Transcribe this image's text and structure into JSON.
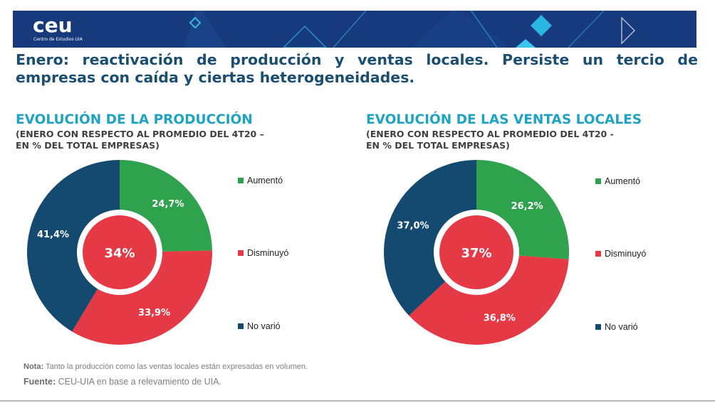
{
  "brand": {
    "logo": "ceu",
    "logo_subtitle": "Centro de Estudios UIA",
    "banner_color": "#173a7c",
    "accent_color": "#1fa3c4"
  },
  "headline": "Enero: reactivación de producción y ventas locales. Persiste un tercio de empresas con caída y ciertas heterogeneidades.",
  "legend_labels": [
    "Aumentó",
    "Disminuyó",
    "No varió"
  ],
  "colors": {
    "aumento": "#2ea24d",
    "disminuyo": "#e63946",
    "no_vario": "#144a6f"
  },
  "chart_data": [
    {
      "type": "pie",
      "variant": "donut",
      "title": "EVOLUCIÓN DE LA PRODUCCIÓN",
      "subtitle_line1": "(ENERO CON RESPECTO AL PROMEDIO DEL 4T20 –",
      "subtitle_line2": "EN % DEL TOTAL EMPRESAS)",
      "categories": [
        "Aumentó",
        "Disminuyó",
        "No varió"
      ],
      "values": [
        24.7,
        33.9,
        41.4
      ],
      "labels": [
        "24,7%",
        "33,9%",
        "41,4%"
      ],
      "center_label": "34%",
      "legend_position": "right"
    },
    {
      "type": "pie",
      "variant": "donut",
      "title": "EVOLUCIÓN DE LAS VENTAS LOCALES",
      "subtitle_line1": "(ENERO CON RESPECTO AL PROMEDIO DEL 4T20 -",
      "subtitle_line2": "EN % DEL TOTAL EMPRESAS)",
      "categories": [
        "Aumentó",
        "Disminuyó",
        "No varió"
      ],
      "values": [
        26.2,
        36.8,
        37.0
      ],
      "labels": [
        "26,2%",
        "36,8%",
        "37,0%"
      ],
      "center_label": "37%",
      "legend_position": "right"
    }
  ],
  "footer": {
    "note_label": "Nota:",
    "note_text": " Tanto la producción como las ventas locales están expresadas en volumen.",
    "source_label": "Fuente:",
    "source_text": " CEU-UIA en base a relevamiento de UIA."
  }
}
